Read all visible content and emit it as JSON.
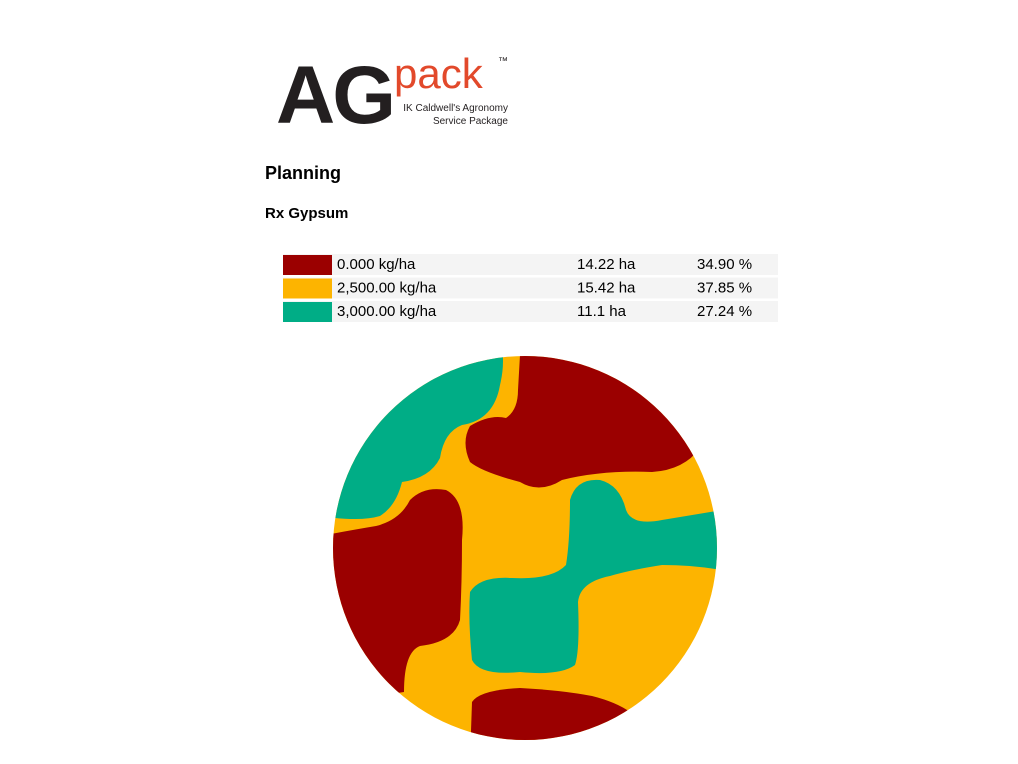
{
  "logo": {
    "main": "AG",
    "accent": "pack",
    "trademark": "™",
    "tagline": [
      "IK Caldwell's Agronomy",
      "Service Package"
    ]
  },
  "heading": "Planning",
  "subheading": "Rx Gypsum",
  "legend": {
    "rows": [
      {
        "rate": "0.000 kg/ha",
        "area": "14.22 ha",
        "percent": "34.90 %",
        "color": "#9b0000"
      },
      {
        "rate": "2,500.00 kg/ha",
        "area": "15.42 ha",
        "percent": "37.85 %",
        "color": "#fdb400"
      },
      {
        "rate": "3,000.00 kg/ha",
        "area": "11.1 ha",
        "percent": "27.24 %",
        "color": "#00ad86"
      }
    ]
  }
}
